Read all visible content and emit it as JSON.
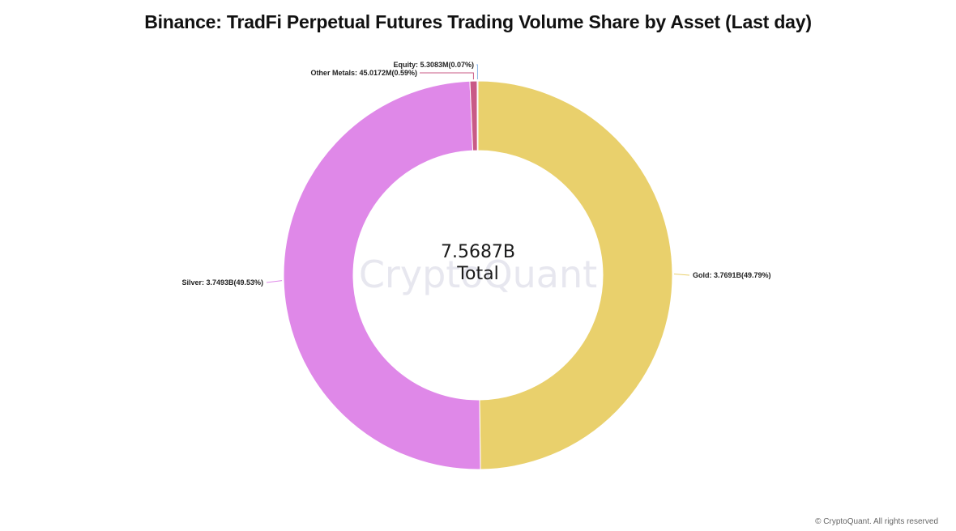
{
  "chart_data": {
    "type": "pie",
    "title": "Binance: TradFi Perpetual Futures Trading Volume Share by Asset (Last day)",
    "center": {
      "value": "7.5687B",
      "label": "Total"
    },
    "slices": [
      {
        "name": "Gold",
        "value_text": "3.7691B",
        "percent_text": "49.79%",
        "value": 3769.1,
        "percent": 49.79,
        "color": "#e9d06c"
      },
      {
        "name": "Silver",
        "value_text": "3.7493B",
        "percent_text": "49.53%",
        "value": 3749.3,
        "percent": 49.53,
        "color": "#df88e8"
      },
      {
        "name": "Other Metals",
        "value_text": "45.0172M",
        "percent_text": "0.59%",
        "value": 45.0172,
        "percent": 0.59,
        "color": "#c95a86"
      },
      {
        "name": "Equity",
        "value_text": "5.3083M",
        "percent_text": "0.07%",
        "value": 5.3083,
        "percent": 0.07,
        "color": "#8fb7e8"
      }
    ]
  },
  "watermark": "CryptoQuant",
  "footer": "© CryptoQuant. All rights reserved"
}
